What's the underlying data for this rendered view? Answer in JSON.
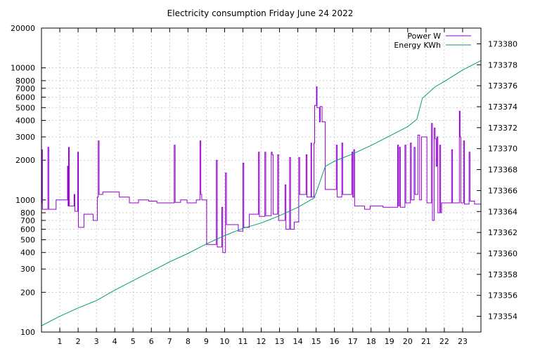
{
  "chart_data": {
    "type": "line",
    "title": "Electricity consumption Friday June 24 2022",
    "xlabel": "",
    "ylabel": "",
    "y2label": "",
    "grid": true,
    "legend_position": "top-right",
    "x_range": [
      0,
      24
    ],
    "x_ticks": [
      1,
      2,
      3,
      4,
      5,
      6,
      7,
      8,
      9,
      10,
      11,
      12,
      13,
      14,
      15,
      16,
      17,
      18,
      19,
      20,
      21,
      22,
      23
    ],
    "y_scale": "log",
    "y_range": [
      100,
      20000
    ],
    "y_ticks": [
      100,
      200,
      300,
      400,
      500,
      600,
      700,
      800,
      1000,
      2000,
      3000,
      4000,
      5000,
      6000,
      7000,
      8000,
      10000,
      20000
    ],
    "y2_range": [
      173352.5,
      173381.5
    ],
    "y2_ticks": [
      173354,
      173356,
      173358,
      173360,
      173362,
      173364,
      173366,
      173368,
      173370,
      173372,
      173374,
      173376,
      173378,
      173380
    ],
    "series": [
      {
        "name": "Power W",
        "axis": "y",
        "color": "#9400d3",
        "points": [
          [
            0.0,
            950
          ],
          [
            0.02,
            2400
          ],
          [
            0.05,
            850
          ],
          [
            0.3,
            850
          ],
          [
            0.35,
            2500
          ],
          [
            0.4,
            850
          ],
          [
            0.75,
            850
          ],
          [
            0.8,
            1000
          ],
          [
            1.4,
            1000
          ],
          [
            1.42,
            1800
          ],
          [
            1.45,
            900
          ],
          [
            1.48,
            2500
          ],
          [
            1.52,
            900
          ],
          [
            1.75,
            900
          ],
          [
            1.78,
            1100
          ],
          [
            1.82,
            820
          ],
          [
            1.95,
            820
          ],
          [
            1.98,
            2300
          ],
          [
            2.02,
            620
          ],
          [
            2.3,
            620
          ],
          [
            2.32,
            780
          ],
          [
            2.8,
            780
          ],
          [
            2.82,
            700
          ],
          [
            3.0,
            700
          ],
          [
            3.05,
            1050
          ],
          [
            3.1,
            2800
          ],
          [
            3.15,
            1100
          ],
          [
            3.3,
            1100
          ],
          [
            3.35,
            1150
          ],
          [
            4.2,
            1150
          ],
          [
            4.25,
            1050
          ],
          [
            4.75,
            1050
          ],
          [
            4.8,
            950
          ],
          [
            5.25,
            950
          ],
          [
            5.3,
            1000
          ],
          [
            5.8,
            1000
          ],
          [
            5.85,
            980
          ],
          [
            6.25,
            980
          ],
          [
            6.3,
            950
          ],
          [
            7.2,
            950
          ],
          [
            7.25,
            2600
          ],
          [
            7.3,
            960
          ],
          [
            7.55,
            960
          ],
          [
            7.6,
            1000
          ],
          [
            7.9,
            1000
          ],
          [
            7.95,
            950
          ],
          [
            8.4,
            950
          ],
          [
            8.45,
            1000
          ],
          [
            8.6,
            1000
          ],
          [
            8.65,
            2800
          ],
          [
            8.7,
            1100
          ],
          [
            8.75,
            1000
          ],
          [
            9.0,
            1000
          ],
          [
            9.02,
            460
          ],
          [
            9.5,
            460
          ],
          [
            9.55,
            2000
          ],
          [
            9.6,
            440
          ],
          [
            9.8,
            440
          ],
          [
            9.85,
            880
          ],
          [
            9.9,
            400
          ],
          [
            10.0,
            400
          ],
          [
            10.05,
            1600
          ],
          [
            10.1,
            650
          ],
          [
            10.7,
            650
          ],
          [
            10.75,
            580
          ],
          [
            10.95,
            580
          ],
          [
            11.0,
            1900
          ],
          [
            11.05,
            620
          ],
          [
            11.3,
            620
          ],
          [
            11.35,
            780
          ],
          [
            11.8,
            780
          ],
          [
            11.85,
            2300
          ],
          [
            11.9,
            750
          ],
          [
            12.15,
            750
          ],
          [
            12.2,
            2300
          ],
          [
            12.25,
            760
          ],
          [
            12.5,
            760
          ],
          [
            12.55,
            2300
          ],
          [
            12.6,
            2200
          ],
          [
            12.65,
            780
          ],
          [
            12.85,
            780
          ],
          [
            12.9,
            2200
          ],
          [
            12.95,
            700
          ],
          [
            13.25,
            700
          ],
          [
            13.3,
            1300
          ],
          [
            13.35,
            600
          ],
          [
            13.5,
            600
          ],
          [
            13.55,
            2100
          ],
          [
            13.6,
            600
          ],
          [
            13.75,
            600
          ],
          [
            13.8,
            680
          ],
          [
            14.0,
            680
          ],
          [
            14.05,
            2100
          ],
          [
            14.1,
            1100
          ],
          [
            14.4,
            1100
          ],
          [
            14.45,
            2200
          ],
          [
            14.5,
            1050
          ],
          [
            14.7,
            1050
          ],
          [
            14.72,
            2700
          ],
          [
            14.75,
            1050
          ],
          [
            14.85,
            1050
          ],
          [
            14.88,
            2700
          ],
          [
            14.92,
            5200
          ],
          [
            15.0,
            5200
          ],
          [
            15.02,
            7200
          ],
          [
            15.05,
            5000
          ],
          [
            15.15,
            5000
          ],
          [
            15.18,
            3900
          ],
          [
            15.22,
            5100
          ],
          [
            15.3,
            5100
          ],
          [
            15.32,
            3900
          ],
          [
            15.45,
            3900
          ],
          [
            15.5,
            1200
          ],
          [
            16.05,
            1200
          ],
          [
            16.1,
            2600
          ],
          [
            16.15,
            1050
          ],
          [
            16.35,
            1050
          ],
          [
            16.4,
            2700
          ],
          [
            16.45,
            1100
          ],
          [
            16.9,
            1100
          ],
          [
            16.95,
            2300
          ],
          [
            17.0,
            1050
          ],
          [
            17.05,
            2400
          ],
          [
            17.1,
            900
          ],
          [
            17.6,
            900
          ],
          [
            17.65,
            850
          ],
          [
            17.9,
            850
          ],
          [
            17.95,
            900
          ],
          [
            18.6,
            900
          ],
          [
            18.65,
            880
          ],
          [
            19.4,
            880
          ],
          [
            19.45,
            2600
          ],
          [
            19.5,
            900
          ],
          [
            19.55,
            2500
          ],
          [
            19.6,
            880
          ],
          [
            19.8,
            880
          ],
          [
            19.85,
            2600
          ],
          [
            19.9,
            950
          ],
          [
            20.1,
            950
          ],
          [
            20.15,
            2700
          ],
          [
            20.2,
            1000
          ],
          [
            20.3,
            1000
          ],
          [
            20.35,
            2500
          ],
          [
            20.4,
            1100
          ],
          [
            20.5,
            1100
          ],
          [
            20.55,
            3100
          ],
          [
            20.6,
            3100
          ],
          [
            20.65,
            1000
          ],
          [
            20.75,
            3000
          ],
          [
            21.0,
            3000
          ],
          [
            21.05,
            950
          ],
          [
            21.25,
            950
          ],
          [
            21.3,
            3800
          ],
          [
            21.35,
            700
          ],
          [
            21.4,
            700
          ],
          [
            21.45,
            3500
          ],
          [
            21.5,
            2900
          ],
          [
            21.55,
            1800
          ],
          [
            21.6,
            3000
          ],
          [
            21.65,
            800
          ],
          [
            21.7,
            800
          ],
          [
            21.75,
            2600
          ],
          [
            21.8,
            800
          ],
          [
            21.85,
            950
          ],
          [
            22.35,
            950
          ],
          [
            22.4,
            2400
          ],
          [
            22.45,
            950
          ],
          [
            22.8,
            950
          ],
          [
            22.82,
            4700
          ],
          [
            22.86,
            3000
          ],
          [
            22.9,
            950
          ],
          [
            23.0,
            950
          ],
          [
            23.05,
            2800
          ],
          [
            23.1,
            930
          ],
          [
            23.3,
            930
          ],
          [
            23.35,
            2300
          ],
          [
            23.4,
            980
          ],
          [
            23.6,
            980
          ],
          [
            23.65,
            930
          ],
          [
            23.9,
            930
          ],
          [
            24.0,
            930
          ]
        ]
      },
      {
        "name": "Energy KWh",
        "axis": "y2",
        "color": "#009e73",
        "points": [
          [
            0.0,
            173353.1
          ],
          [
            1.0,
            173354.0
          ],
          [
            2.0,
            173354.8
          ],
          [
            3.0,
            173355.5
          ],
          [
            4.0,
            173356.5
          ],
          [
            5.0,
            173357.4
          ],
          [
            6.0,
            173358.3
          ],
          [
            7.0,
            173359.2
          ],
          [
            8.0,
            173360.0
          ],
          [
            9.0,
            173360.9
          ],
          [
            10.0,
            173361.7
          ],
          [
            11.0,
            173362.4
          ],
          [
            12.0,
            173362.9
          ],
          [
            13.0,
            173363.6
          ],
          [
            14.0,
            173364.4
          ],
          [
            14.9,
            173365.3
          ],
          [
            15.5,
            173368.3
          ],
          [
            16.0,
            173368.8
          ],
          [
            17.0,
            173369.5
          ],
          [
            18.0,
            173370.3
          ],
          [
            19.0,
            173371.2
          ],
          [
            20.0,
            173372.1
          ],
          [
            20.5,
            173372.8
          ],
          [
            20.8,
            173374.8
          ],
          [
            21.5,
            173375.9
          ],
          [
            22.0,
            173376.4
          ],
          [
            23.0,
            173377.5
          ],
          [
            24.0,
            173378.4
          ]
        ]
      }
    ]
  }
}
